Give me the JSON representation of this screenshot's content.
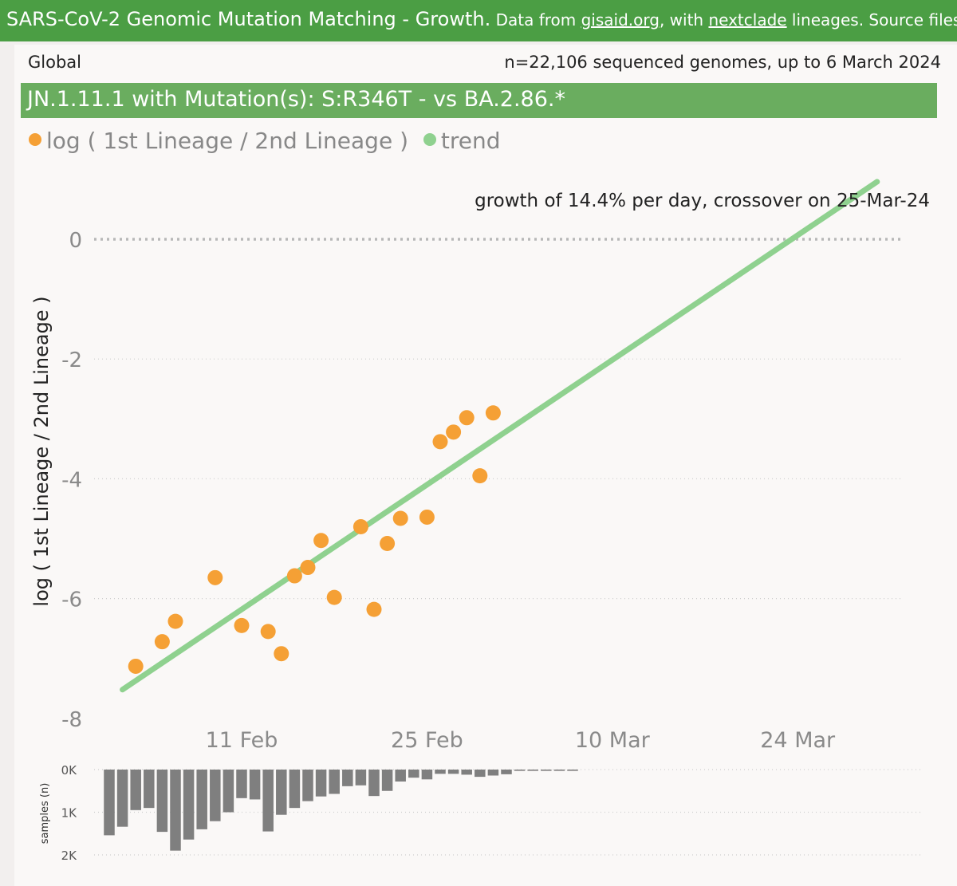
{
  "banner": {
    "title": "SARS-CoV-2 Genomic Mutation Matching - Growth.",
    "sub_prefix": " Data from ",
    "link1": "gisaid.org",
    "sub_mid": ", with ",
    "link2": "nextclade",
    "sub_suffix": " lineages. Source files & in",
    "bg_color": "#4b9e44"
  },
  "region": "Global",
  "summary": "n=22,106 sequenced genomes, up to 6 March 2024",
  "subtitle": "JN.1.11.1 with Mutation(s): S:R346T - vs BA.2.86.*",
  "legend": [
    {
      "label": "log ( 1st Lineage / 2nd Lineage )",
      "color": "#f5a035"
    },
    {
      "label": "trend",
      "color": "#8fd18f"
    }
  ],
  "annotation": "growth of 14.4% per day, crossover on 25-Mar-24",
  "chart_data": [
    {
      "type": "scatter",
      "ylabel": "log ( 1st Lineage / 2nd Lineage )",
      "ylim": [
        -8,
        0
      ],
      "yticks": [
        0,
        -2,
        -4,
        -6,
        -8
      ],
      "xlim": [
        "2024-02-01",
        "2024-03-30"
      ],
      "xticks": [
        {
          "date": "2024-02-11",
          "label": "11 Feb"
        },
        {
          "date": "2024-02-25",
          "label": "25 Feb"
        },
        {
          "date": "2024-03-10",
          "label": "10 Mar"
        },
        {
          "date": "2024-03-24",
          "label": "24 Mar"
        }
      ],
      "grid": true,
      "zero_line": true,
      "points_color": "#f5a035",
      "trend_color": "#8fd18f",
      "points": [
        {
          "x": "2024-02-03",
          "y": -7.13
        },
        {
          "x": "2024-02-05",
          "y": -6.72
        },
        {
          "x": "2024-02-06",
          "y": -6.38
        },
        {
          "x": "2024-02-09",
          "y": -5.65
        },
        {
          "x": "2024-02-11",
          "y": -6.45
        },
        {
          "x": "2024-02-13",
          "y": -6.55
        },
        {
          "x": "2024-02-14",
          "y": -6.92
        },
        {
          "x": "2024-02-15",
          "y": -5.62
        },
        {
          "x": "2024-02-16",
          "y": -5.48
        },
        {
          "x": "2024-02-17",
          "y": -5.03
        },
        {
          "x": "2024-02-18",
          "y": -5.98
        },
        {
          "x": "2024-02-20",
          "y": -4.8
        },
        {
          "x": "2024-02-21",
          "y": -6.18
        },
        {
          "x": "2024-02-22",
          "y": -5.08
        },
        {
          "x": "2024-02-23",
          "y": -4.66
        },
        {
          "x": "2024-02-25",
          "y": -4.64
        },
        {
          "x": "2024-02-26",
          "y": -3.38
        },
        {
          "x": "2024-02-27",
          "y": -3.22
        },
        {
          "x": "2024-02-28",
          "y": -2.98
        },
        {
          "x": "2024-02-29",
          "y": -3.95
        },
        {
          "x": "2024-03-01",
          "y": -2.9
        }
      ],
      "trend": [
        {
          "x": "2024-02-02",
          "y": -7.52
        },
        {
          "x": "2024-03-30",
          "y": 0.96
        }
      ]
    },
    {
      "type": "bar",
      "ylabel": "samples (n)",
      "ylim": [
        0,
        2000
      ],
      "yticks": [
        {
          "value": 0,
          "label": "0K"
        },
        {
          "value": 1000,
          "label": "1K"
        },
        {
          "value": 2000,
          "label": "2K"
        }
      ],
      "bar_color": "#7f7f7f",
      "x": [
        "2024-02-01",
        "2024-02-02",
        "2024-02-03",
        "2024-02-04",
        "2024-02-05",
        "2024-02-06",
        "2024-02-07",
        "2024-02-08",
        "2024-02-09",
        "2024-02-10",
        "2024-02-11",
        "2024-02-12",
        "2024-02-13",
        "2024-02-14",
        "2024-02-15",
        "2024-02-16",
        "2024-02-17",
        "2024-02-18",
        "2024-02-19",
        "2024-02-20",
        "2024-02-21",
        "2024-02-22",
        "2024-02-23",
        "2024-02-24",
        "2024-02-25",
        "2024-02-26",
        "2024-02-27",
        "2024-02-28",
        "2024-02-29",
        "2024-03-01",
        "2024-03-02",
        "2024-03-03",
        "2024-03-04",
        "2024-03-05",
        "2024-03-06",
        "2024-03-07"
      ],
      "values": [
        1540,
        1340,
        950,
        900,
        1460,
        1900,
        1640,
        1400,
        1210,
        1000,
        670,
        700,
        1450,
        1060,
        900,
        740,
        630,
        570,
        390,
        370,
        620,
        500,
        280,
        190,
        230,
        100,
        100,
        120,
        170,
        140,
        110,
        30,
        30,
        30,
        30,
        30
      ]
    }
  ]
}
